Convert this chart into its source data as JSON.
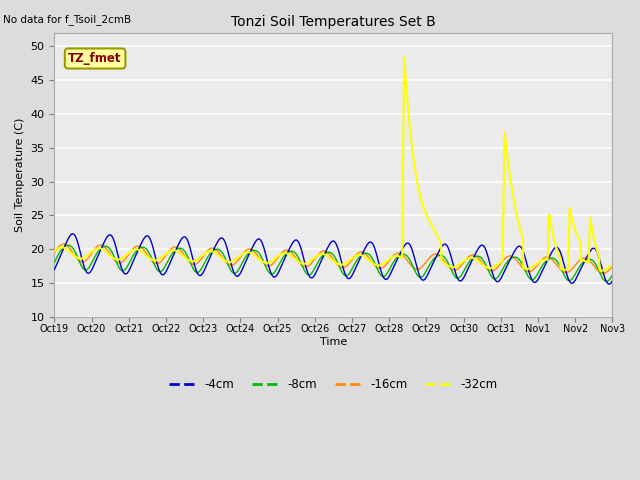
{
  "title": "Tonzi Soil Temperatures Set B",
  "xlabel": "Time",
  "ylabel": "Soil Temperature (C)",
  "top_left_note": "No data for f_Tsoil_2cmB",
  "annotation_box": "TZ_fmet",
  "ylim": [
    10,
    52
  ],
  "yticks": [
    10,
    15,
    20,
    25,
    30,
    35,
    40,
    45,
    50
  ],
  "bg_color": "#dcdcdc",
  "plot_bg_color": "#ebebeb",
  "series": {
    "4cm": {
      "color": "#0000cc",
      "lw": 1.0
    },
    "8cm": {
      "color": "#00bb00",
      "lw": 1.0
    },
    "16cm": {
      "color": "#ff8800",
      "lw": 1.0
    },
    "32cm": {
      "color": "#ffff00",
      "lw": 1.5
    }
  },
  "legend": [
    {
      "label": "-4cm",
      "color": "#0000cc"
    },
    {
      "label": "-8cm",
      "color": "#00bb00"
    },
    {
      "label": "-16cm",
      "color": "#ff8800"
    },
    {
      "label": "-32cm",
      "color": "#ffff00"
    }
  ],
  "xtick_labels": [
    "Oct 19",
    "Oct 20",
    "Oct 21",
    "Oct 22",
    "Oct 23",
    "Oct 24",
    "Oct 25",
    "Oct 26",
    "Oct 27",
    "Oct 28",
    "Oct 29",
    "Oct 30",
    "Oct 31",
    "Nov 1",
    "Nov 2",
    "Nov 3"
  ],
  "total_days": 15
}
